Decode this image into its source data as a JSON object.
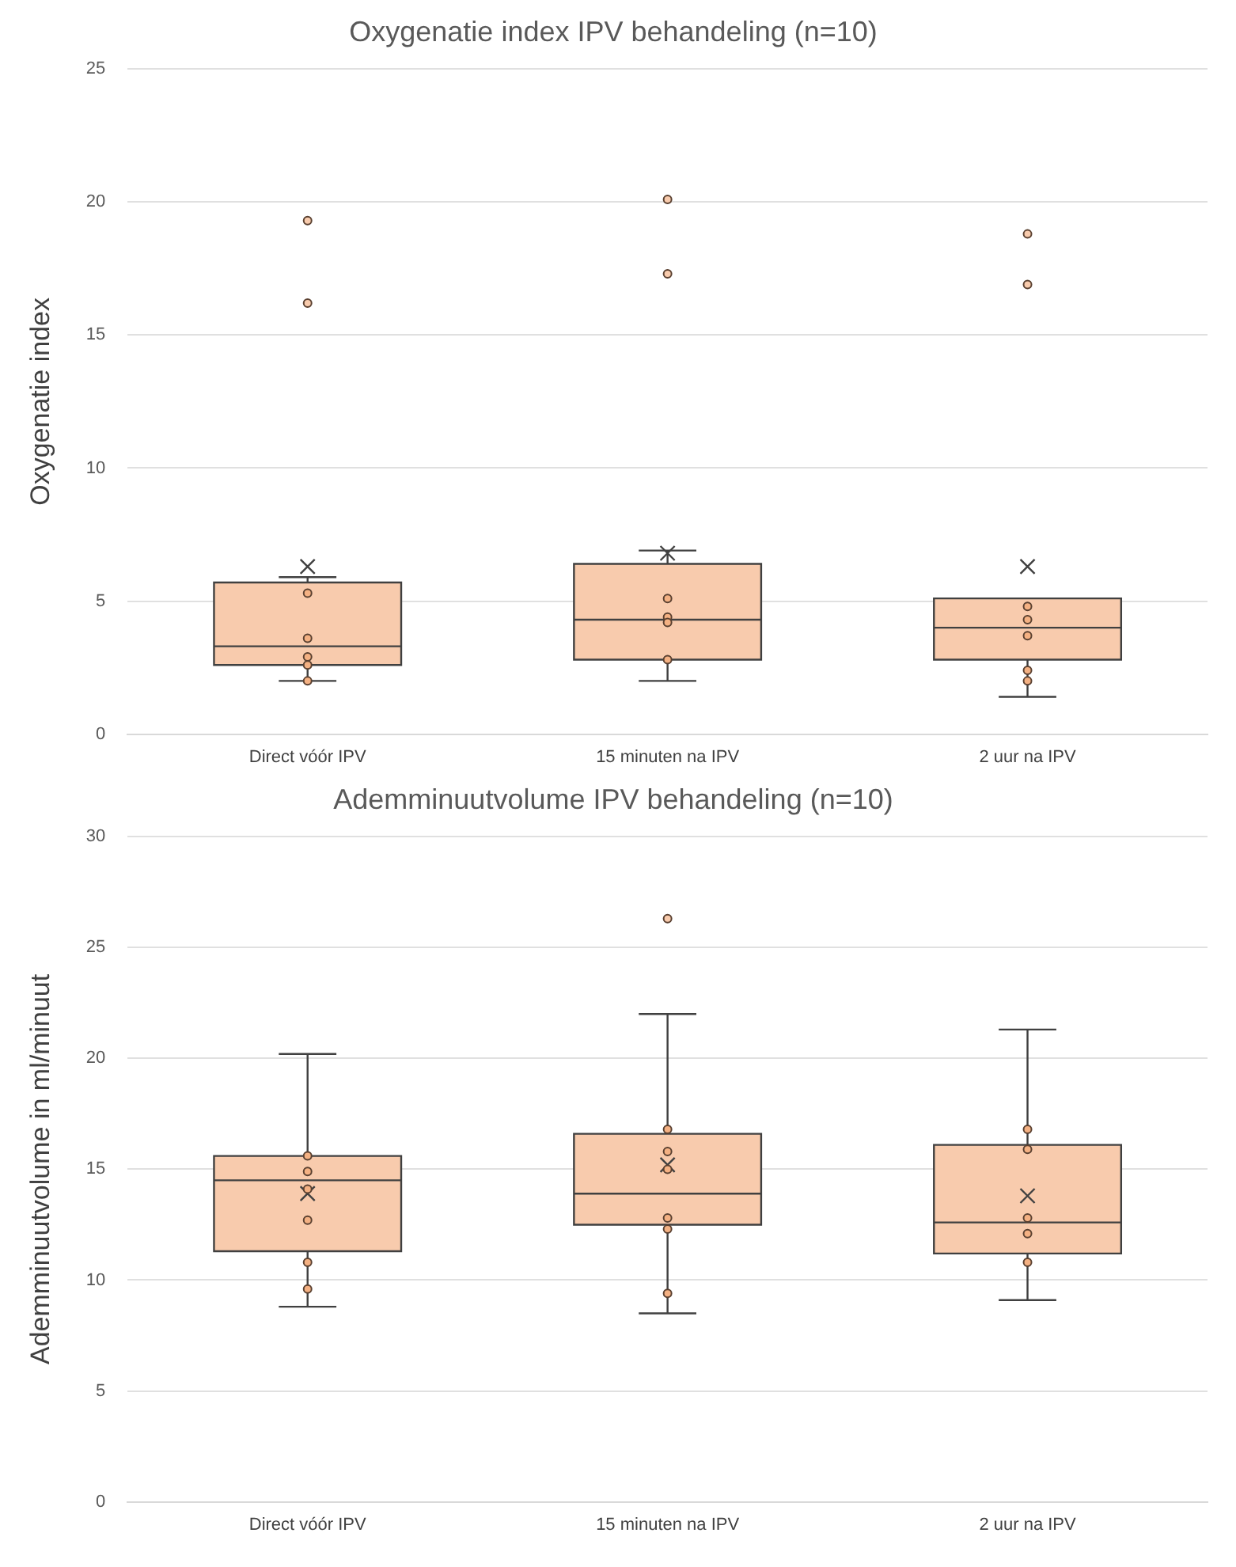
{
  "chart_data": [
    {
      "type": "box",
      "title": "Oxygenatie index IPV behandeling (n=10)",
      "ylabel": "Oxygenatie index",
      "categories": [
        "Direct vóór IPV",
        "15 minuten na IPV",
        "2 uur na IPV"
      ],
      "series": [
        {
          "color": "#f8cbad",
          "boxes": [
            {
              "low": 2.0,
              "q1": 2.6,
              "median": 3.3,
              "q3": 5.7,
              "high": 5.9,
              "mean": 6.3,
              "outliers": [
                19.3,
                16.2
              ]
            },
            {
              "low": 2.0,
              "q1": 2.8,
              "median": 4.3,
              "q3": 6.4,
              "high": 6.9,
              "mean": 6.8,
              "outliers": [
                20.1,
                17.3
              ]
            },
            {
              "low": 1.4,
              "q1": 2.8,
              "median": 4.0,
              "q3": 5.1,
              "high": 5.1,
              "mean": 6.3,
              "outliers": [
                18.8,
                16.9
              ]
            }
          ]
        },
        {
          "type": "scatter",
          "color": "#f4b183",
          "x": [
            "Direct vóór IPV",
            "Direct vóór IPV",
            "Direct vóór IPV",
            "Direct vóór IPV",
            "Direct vóór IPV",
            "15 minuten na IPV",
            "15 minuten na IPV",
            "15 minuten na IPV",
            "15 minuten na IPV",
            "2 uur na IPV",
            "2 uur na IPV",
            "2 uur na IPV",
            "2 uur na IPV",
            "2 uur na IPV"
          ],
          "values": [
            5.3,
            3.6,
            2.9,
            2.6,
            2.0,
            5.1,
            4.4,
            4.2,
            2.8,
            4.8,
            4.3,
            3.7,
            2.4,
            2.0
          ]
        }
      ],
      "ylim": [
        0,
        25
      ],
      "yticks": [
        0,
        5,
        10,
        15,
        20,
        25
      ],
      "grid": "y",
      "marker": "circle"
    },
    {
      "type": "box",
      "title": "Ademminuutvolume IPV behandeling (n=10)",
      "ylabel": "Ademminuutvolume in ml/minuut",
      "categories": [
        "Direct vóór IPV",
        "15 minuten na IPV",
        "2 uur na IPV"
      ],
      "series": [
        {
          "color": "#f8cbad",
          "boxes": [
            {
              "low": 8.8,
              "q1": 11.3,
              "median": 14.5,
              "q3": 15.6,
              "high": 20.2,
              "mean": 13.9
            },
            {
              "low": 8.5,
              "q1": 12.5,
              "median": 13.9,
              "q3": 16.6,
              "high": 22.0,
              "mean": 15.2,
              "outliers": [
                26.3
              ]
            },
            {
              "low": 9.1,
              "q1": 11.2,
              "median": 12.6,
              "q3": 16.1,
              "high": 21.3,
              "mean": 13.8
            }
          ]
        },
        {
          "type": "scatter",
          "color": "#f4b183",
          "x": [
            "Direct vóór IPV",
            "Direct vóór IPV",
            "Direct vóór IPV",
            "Direct vóór IPV",
            "Direct vóór IPV",
            "Direct vóór IPV",
            "15 minuten na IPV",
            "15 minuten na IPV",
            "15 minuten na IPV",
            "15 minuten na IPV",
            "15 minuten na IPV",
            "15 minuten na IPV",
            "2 uur na IPV",
            "2 uur na IPV",
            "2 uur na IPV",
            "2 uur na IPV",
            "2 uur na IPV"
          ],
          "values": [
            15.6,
            14.9,
            14.1,
            12.7,
            10.8,
            9.6,
            16.8,
            15.8,
            15.0,
            12.8,
            12.3,
            9.4,
            16.8,
            15.9,
            12.8,
            12.1,
            10.8
          ]
        }
      ],
      "ylim": [
        0,
        30
      ],
      "yticks": [
        0,
        5,
        10,
        15,
        20,
        25,
        30
      ],
      "grid": "y",
      "marker": "circle"
    }
  ]
}
